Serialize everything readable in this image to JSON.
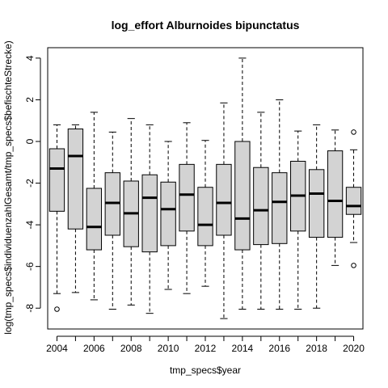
{
  "chart_data": {
    "type": "boxplot",
    "title": "log_effort Alburnoides bipunctatus",
    "xlabel": "tmp_specs$year",
    "ylabel": "log(tmp_specs$individuenzahlGesamt/tmp_specs$befischteStrecke)",
    "ylim": [
      -9,
      4.5
    ],
    "y_ticks": [
      -8,
      -6,
      -4,
      -2,
      0,
      2,
      4
    ],
    "x_tick_labels": [
      "2004",
      "2006",
      "2008",
      "2010",
      "2012",
      "2014",
      "2016",
      "2018",
      "2020"
    ],
    "box_fill": "#d3d3d3",
    "grid": false,
    "boxes": [
      {
        "year": 2004,
        "whisker_low": -7.3,
        "q1": -3.35,
        "median": -1.3,
        "q3": -0.35,
        "whisker_high": 0.8,
        "outliers": [
          -8.05
        ]
      },
      {
        "year": 2005,
        "whisker_low": -7.25,
        "q1": -4.2,
        "median": -0.7,
        "q3": 0.6,
        "whisker_high": 0.8,
        "outliers": []
      },
      {
        "year": 2006,
        "whisker_low": -7.6,
        "q1": -5.2,
        "median": -4.1,
        "q3": -2.25,
        "whisker_high": 1.4,
        "outliers": []
      },
      {
        "year": 2007,
        "whisker_low": -8.05,
        "q1": -4.5,
        "median": -2.95,
        "q3": -1.5,
        "whisker_high": 0.45,
        "outliers": []
      },
      {
        "year": 2008,
        "whisker_low": -7.85,
        "q1": -5.05,
        "median": -3.45,
        "q3": -1.9,
        "whisker_high": 1.1,
        "outliers": []
      },
      {
        "year": 2009,
        "whisker_low": -8.25,
        "q1": -5.3,
        "median": -2.7,
        "q3": -1.6,
        "whisker_high": 0.8,
        "outliers": []
      },
      {
        "year": 2010,
        "whisker_low": -7.1,
        "q1": -5.0,
        "median": -3.25,
        "q3": -1.95,
        "whisker_high": 0.0,
        "outliers": []
      },
      {
        "year": 2011,
        "whisker_low": -7.3,
        "q1": -4.3,
        "median": -2.55,
        "q3": -1.1,
        "whisker_high": 0.9,
        "outliers": []
      },
      {
        "year": 2012,
        "whisker_low": -6.95,
        "q1": -5.0,
        "median": -4.0,
        "q3": -2.2,
        "whisker_high": 0.05,
        "outliers": []
      },
      {
        "year": 2013,
        "whisker_low": -8.5,
        "q1": -4.5,
        "median": -2.95,
        "q3": -1.1,
        "whisker_high": 1.85,
        "outliers": []
      },
      {
        "year": 2014,
        "whisker_low": -8.05,
        "q1": -5.2,
        "median": -3.7,
        "q3": 0.0,
        "whisker_high": 4.0,
        "outliers": []
      },
      {
        "year": 2015,
        "whisker_low": -8.05,
        "q1": -4.95,
        "median": -3.3,
        "q3": -1.25,
        "whisker_high": 1.4,
        "outliers": []
      },
      {
        "year": 2016,
        "whisker_low": -8.05,
        "q1": -4.9,
        "median": -2.9,
        "q3": -1.5,
        "whisker_high": 2.0,
        "outliers": []
      },
      {
        "year": 2017,
        "whisker_low": -8.05,
        "q1": -4.3,
        "median": -2.6,
        "q3": -0.95,
        "whisker_high": 0.5,
        "outliers": []
      },
      {
        "year": 2018,
        "whisker_low": -8.0,
        "q1": -4.6,
        "median": -2.5,
        "q3": -1.35,
        "whisker_high": 0.8,
        "outliers": []
      },
      {
        "year": 2019,
        "whisker_low": -5.95,
        "q1": -4.6,
        "median": -2.85,
        "q3": -0.45,
        "whisker_high": 0.55,
        "outliers": []
      },
      {
        "year": 2020,
        "whisker_low": -4.85,
        "q1": -3.5,
        "median": -3.1,
        "q3": -2.2,
        "whisker_high": -0.4,
        "outliers": [
          0.45,
          -5.95
        ]
      }
    ]
  }
}
